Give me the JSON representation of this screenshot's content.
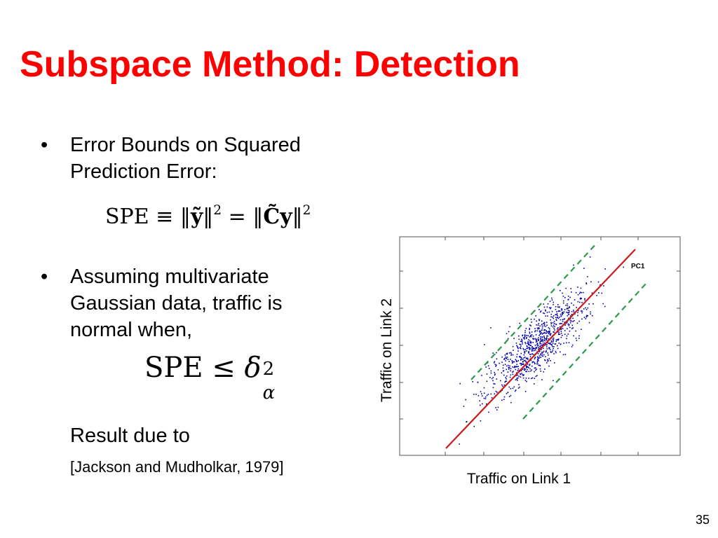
{
  "slide": {
    "title": "Subspace Method: Detection",
    "bullet_char": "•",
    "bullet1": [
      "Error Bounds on Squared",
      "Prediction Error:"
    ],
    "bullet2": [
      "Assuming multivariate",
      "Gaussian data, traffic is",
      "normal when,"
    ],
    "result_text": "Result due to",
    "reference": "[Jackson and Mudholkar, 1979]",
    "page_number": "35"
  },
  "chart_data": {
    "type": "scatter",
    "xlabel": "Traffic on Link 1",
    "ylabel": "Traffic on Link 2",
    "annotation": "PC1",
    "tick_labels": false,
    "series": [
      {
        "kind": "points",
        "color": "#0000aa"
      },
      {
        "kind": "principal-axis",
        "color": "#cc0000"
      },
      {
        "kind": "bounds",
        "color": "#2a9a4a",
        "dash": true
      }
    ]
  }
}
